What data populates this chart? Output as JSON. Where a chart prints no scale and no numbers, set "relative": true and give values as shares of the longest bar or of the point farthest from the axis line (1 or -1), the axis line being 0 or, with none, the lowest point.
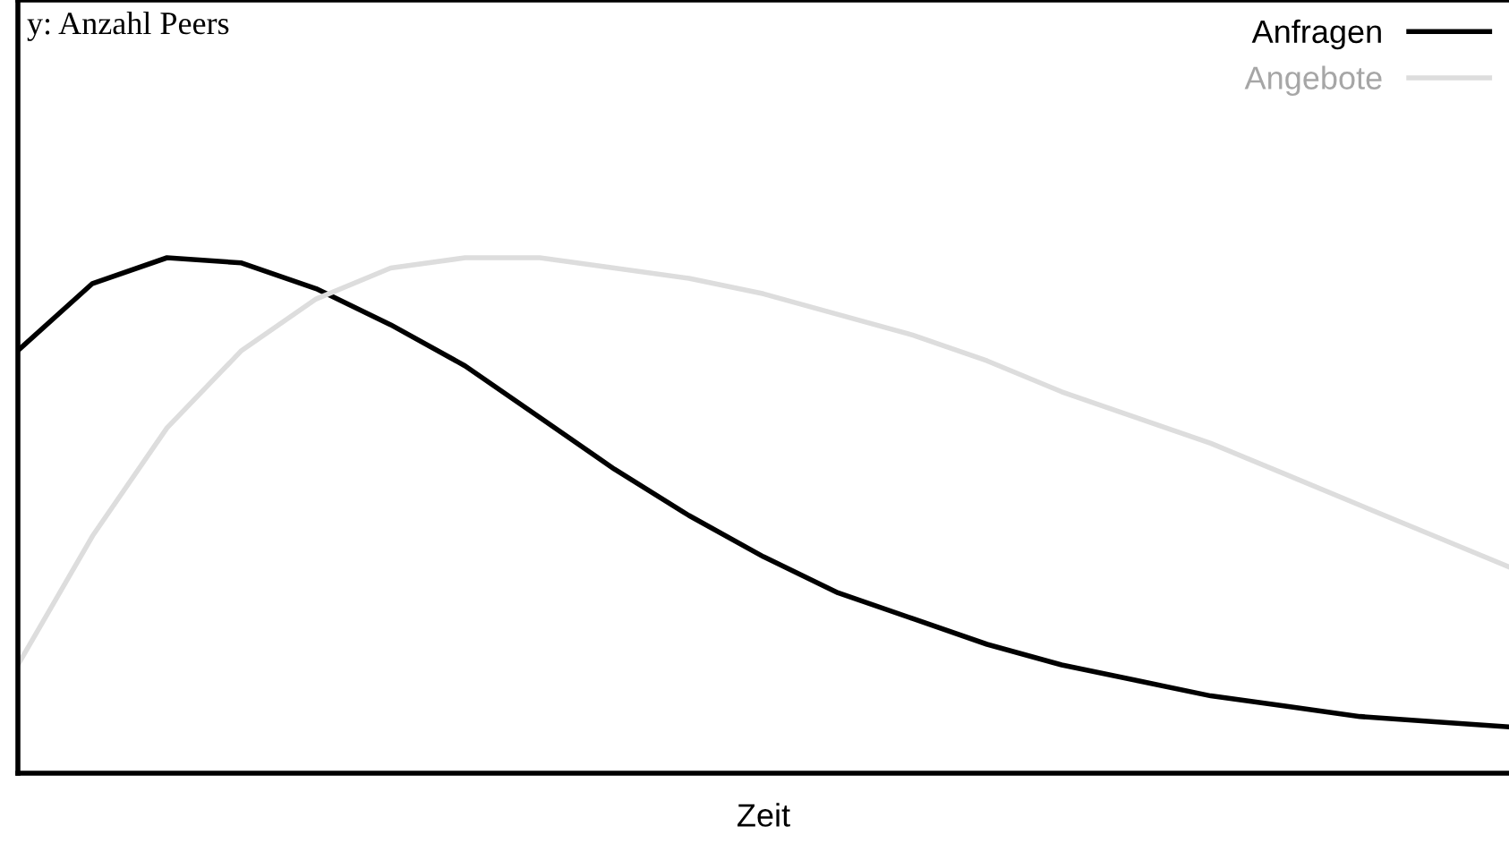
{
  "chart_data": {
    "type": "line",
    "relative": true,
    "annotations": [
      "y: Anzahl Peers"
    ],
    "xlabel": "Zeit",
    "legend": "top right",
    "marker": "none",
    "line_style": "solid",
    "categories": [
      null,
      null,
      null,
      null,
      null,
      null,
      null,
      null,
      null,
      null,
      null,
      null,
      null,
      null,
      null,
      null,
      null,
      null,
      null,
      null,
      null
    ],
    "series": [
      {
        "name": "Anfragen",
        "color": "#000000",
        "values": [
          0.82,
          0.95,
          1.0,
          0.99,
          0.94,
          0.87,
          0.79,
          0.69,
          0.59,
          0.5,
          0.42,
          0.35,
          0.3,
          0.25,
          0.21,
          0.18,
          0.15,
          0.13,
          0.11,
          0.1,
          0.09
        ]
      },
      {
        "name": "Angebote",
        "color": "#dddddd",
        "values": [
          0.21,
          0.46,
          0.67,
          0.82,
          0.92,
          0.98,
          1.0,
          1.0,
          0.98,
          0.96,
          0.93,
          0.89,
          0.85,
          0.8,
          0.74,
          0.69,
          0.64,
          0.58,
          0.52,
          0.46,
          0.4
        ]
      }
    ]
  }
}
